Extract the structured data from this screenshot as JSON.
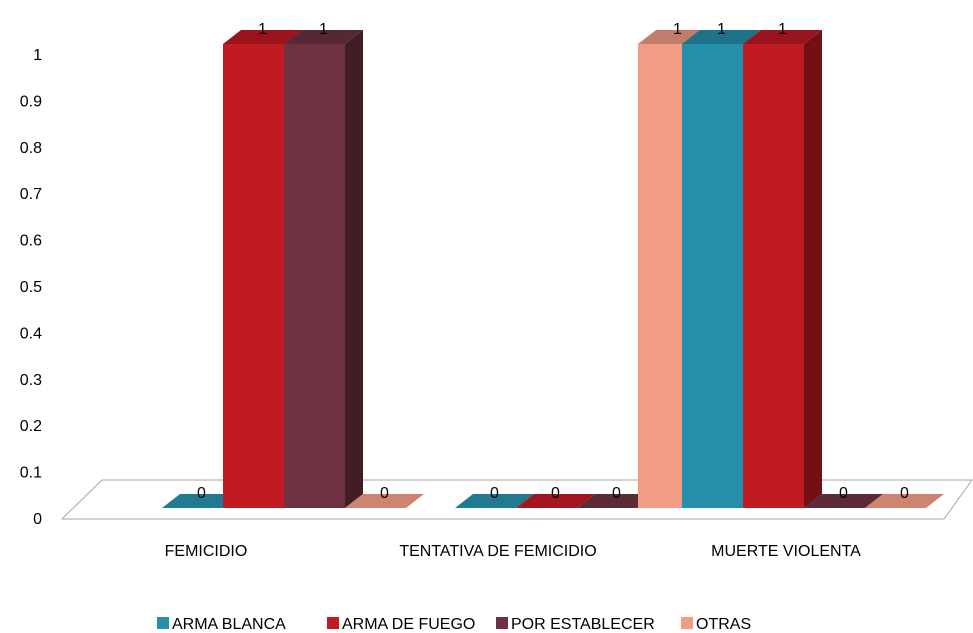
{
  "chart_data": {
    "type": "bar",
    "style": "3d-clustered-column",
    "categories": [
      "FEMICIDIO",
      "TENTATIVA DE FEMICIDIO",
      "MUERTE VIOLENTA"
    ],
    "series": [
      {
        "name": "ARMA BLANCA",
        "values": [
          0,
          0,
          1
        ],
        "color": "#2690aa"
      },
      {
        "name": "ARMA DE FUEGO",
        "values": [
          1,
          0,
          1
        ],
        "color": "#c01a22"
      },
      {
        "name": "POR ESTABLECER",
        "values": [
          1,
          0,
          0
        ],
        "color": "#6c3240"
      },
      {
        "name": "OTRAS",
        "values": [
          0,
          1,
          0
        ],
        "color": "#f29b85"
      }
    ],
    "yticks": [
      "0",
      "0.1",
      "0.2",
      "0.3",
      "0.4",
      "0.5",
      "0.6",
      "0.7",
      "0.8",
      "0.9",
      "1"
    ],
    "ylim": [
      0,
      1
    ],
    "grid": false,
    "legend_position": "bottom"
  }
}
